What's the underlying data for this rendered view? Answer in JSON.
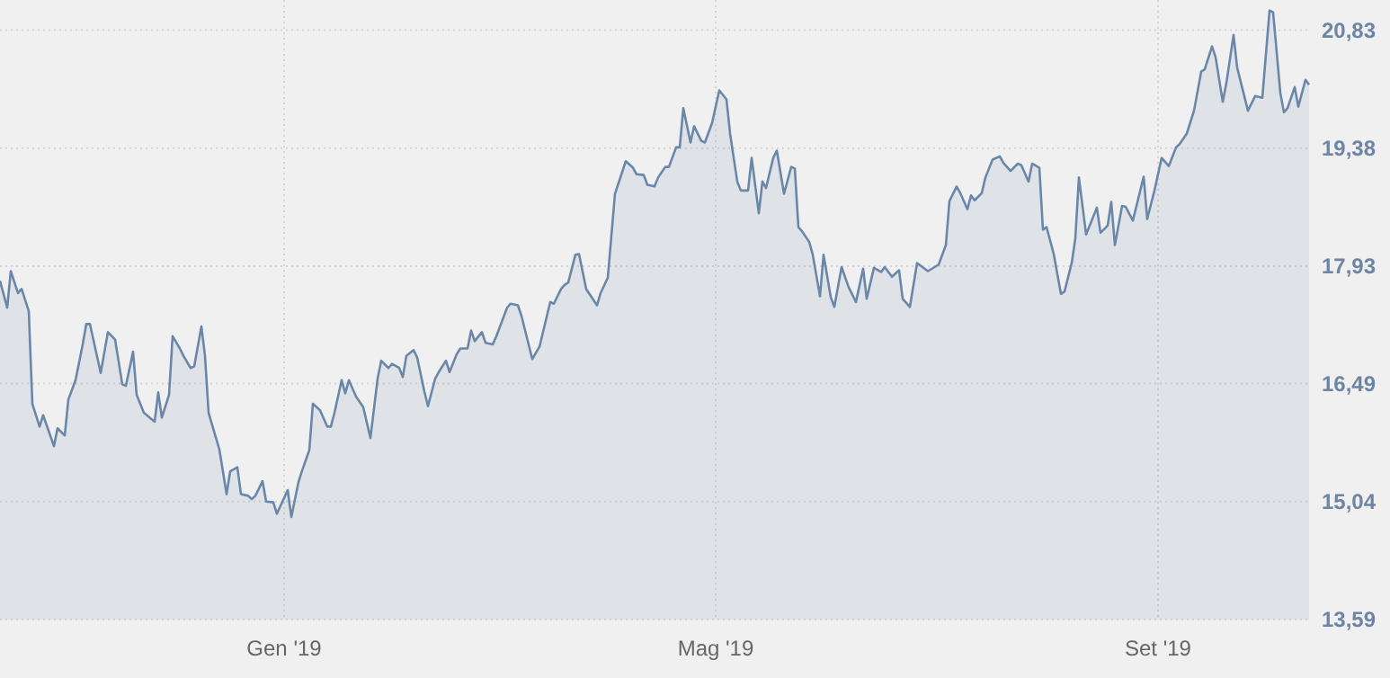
{
  "chart_data": {
    "type": "area",
    "x": [
      "2018-10-14",
      "2018-10-16",
      "2018-10-17",
      "2018-10-19",
      "2018-10-20",
      "2018-10-22",
      "2018-10-23",
      "2018-10-25",
      "2018-10-26",
      "2018-10-29",
      "2018-10-30",
      "2018-11-01",
      "2018-11-02",
      "2018-11-04",
      "2018-11-06",
      "2018-11-07",
      "2018-11-08",
      "2018-11-11",
      "2018-11-13",
      "2018-11-15",
      "2018-11-17",
      "2018-11-18",
      "2018-11-20",
      "2018-11-21",
      "2018-11-23",
      "2018-11-26",
      "2018-11-27",
      "2018-11-28",
      "2018-11-30",
      "2018-12-01",
      "2018-12-03",
      "2018-12-04",
      "2018-12-06",
      "2018-12-07",
      "2018-12-09",
      "2018-12-10",
      "2018-12-11",
      "2018-12-14",
      "2018-12-16",
      "2018-12-17",
      "2018-12-19",
      "2018-12-20",
      "2018-12-22",
      "2018-12-23",
      "2018-12-24",
      "2018-12-26",
      "2018-12-27",
      "2018-12-29",
      "2018-12-30",
      "2019-01-02",
      "2019-01-03",
      "2019-01-05",
      "2019-01-06",
      "2019-01-08",
      "2019-01-09",
      "2019-01-11",
      "2019-01-13",
      "2019-01-14",
      "2019-01-15",
      "2019-01-17",
      "2019-01-18",
      "2019-01-19",
      "2019-01-21",
      "2019-01-23",
      "2019-01-25",
      "2019-01-27",
      "2019-01-28",
      "2019-01-30",
      "2019-01-31",
      "2019-02-02",
      "2019-02-03",
      "2019-02-04",
      "2019-02-06",
      "2019-02-07",
      "2019-02-09",
      "2019-02-10",
      "2019-02-12",
      "2019-02-13",
      "2019-02-15",
      "2019-02-16",
      "2019-02-18",
      "2019-02-19",
      "2019-02-21",
      "2019-02-22",
      "2019-02-23",
      "2019-02-25",
      "2019-02-26",
      "2019-02-28",
      "2019-03-01",
      "2019-03-04",
      "2019-03-05",
      "2019-03-07",
      "2019-03-08",
      "2019-03-11",
      "2019-03-13",
      "2019-03-16",
      "2019-03-17",
      "2019-03-19",
      "2019-03-20",
      "2019-03-21",
      "2019-03-23",
      "2019-03-24",
      "2019-03-26",
      "2019-03-29",
      "2019-03-30",
      "2019-04-01",
      "2019-04-03",
      "2019-04-06",
      "2019-04-08",
      "2019-04-09",
      "2019-04-11",
      "2019-04-12",
      "2019-04-14",
      "2019-04-15",
      "2019-04-17",
      "2019-04-18",
      "2019-04-20",
      "2019-04-21",
      "2019-04-22",
      "2019-04-24",
      "2019-04-25",
      "2019-04-27",
      "2019-04-28",
      "2019-04-30",
      "2019-05-02",
      "2019-05-04",
      "2019-05-05",
      "2019-05-07",
      "2019-05-08",
      "2019-05-10",
      "2019-05-11",
      "2019-05-13",
      "2019-05-14",
      "2019-05-15",
      "2019-05-17",
      "2019-05-18",
      "2019-05-20",
      "2019-05-22",
      "2019-05-23",
      "2019-05-24",
      "2019-05-25",
      "2019-05-27",
      "2019-05-28",
      "2019-05-30",
      "2019-05-31",
      "2019-06-02",
      "2019-06-03",
      "2019-06-05",
      "2019-06-07",
      "2019-06-09",
      "2019-06-11",
      "2019-06-12",
      "2019-06-14",
      "2019-06-16",
      "2019-06-17",
      "2019-06-19",
      "2019-06-21",
      "2019-06-22",
      "2019-06-24",
      "2019-06-26",
      "2019-06-29",
      "2019-07-02",
      "2019-07-04",
      "2019-07-05",
      "2019-07-07",
      "2019-07-08",
      "2019-07-10",
      "2019-07-11",
      "2019-07-12",
      "2019-07-14",
      "2019-07-15",
      "2019-07-17",
      "2019-07-19",
      "2019-07-20",
      "2019-07-22",
      "2019-07-24",
      "2019-07-25",
      "2019-07-27",
      "2019-07-28",
      "2019-07-30",
      "2019-07-31",
      "2019-08-01",
      "2019-08-03",
      "2019-08-05",
      "2019-08-06",
      "2019-08-08",
      "2019-08-09",
      "2019-08-10",
      "2019-08-12",
      "2019-08-15",
      "2019-08-16",
      "2019-08-18",
      "2019-08-19",
      "2019-08-20",
      "2019-08-22",
      "2019-08-23",
      "2019-08-25",
      "2019-08-28",
      "2019-08-29",
      "2019-08-31",
      "2019-09-02",
      "2019-09-04",
      "2019-09-06",
      "2019-09-07",
      "2019-09-09",
      "2019-09-11",
      "2019-09-13",
      "2019-09-14",
      "2019-09-16",
      "2019-09-17",
      "2019-09-19",
      "2019-09-20",
      "2019-09-22",
      "2019-09-23",
      "2019-09-26",
      "2019-09-28",
      "2019-09-30",
      "2019-10-02",
      "2019-10-03",
      "2019-10-05",
      "2019-10-06",
      "2019-10-07",
      "2019-10-09",
      "2019-10-10",
      "2019-10-12",
      "2019-10-13"
    ],
    "series": [
      {
        "color": "#6a87aa",
        "values": [
          17.75,
          17.42,
          17.87,
          17.6,
          17.65,
          17.38,
          16.24,
          15.96,
          16.1,
          15.72,
          15.94,
          15.85,
          16.29,
          16.53,
          16.97,
          17.22,
          17.22,
          16.62,
          17.12,
          17.03,
          16.48,
          16.46,
          16.88,
          16.35,
          16.13,
          16.02,
          16.38,
          16.07,
          16.35,
          17.07,
          16.92,
          16.83,
          16.68,
          16.7,
          17.19,
          16.83,
          16.13,
          15.68,
          15.13,
          15.41,
          15.46,
          15.13,
          15.11,
          15.07,
          15.11,
          15.29,
          15.04,
          15.03,
          14.89,
          15.18,
          14.85,
          15.28,
          15.42,
          15.67,
          16.24,
          16.16,
          15.96,
          15.96,
          16.13,
          16.53,
          16.37,
          16.53,
          16.33,
          16.2,
          15.82,
          16.55,
          16.77,
          16.68,
          16.73,
          16.68,
          16.57,
          16.83,
          16.9,
          16.81,
          16.39,
          16.21,
          16.55,
          16.63,
          16.77,
          16.63,
          16.85,
          16.92,
          16.92,
          17.14,
          17.01,
          17.12,
          16.99,
          16.97,
          17.07,
          17.42,
          17.47,
          17.45,
          17.32,
          16.79,
          16.94,
          17.49,
          17.47,
          17.65,
          17.7,
          17.73,
          18.07,
          18.08,
          17.65,
          17.45,
          17.6,
          17.79,
          18.82,
          19.22,
          19.14,
          19.06,
          19.05,
          18.93,
          18.91,
          19.02,
          19.15,
          19.15,
          19.39,
          19.39,
          19.87,
          19.45,
          19.65,
          19.47,
          19.45,
          19.69,
          20.09,
          19.98,
          19.56,
          18.97,
          18.86,
          18.86,
          19.26,
          18.58,
          18.97,
          18.89,
          19.26,
          19.35,
          18.82,
          19.15,
          19.13,
          18.41,
          18.36,
          18.23,
          18.07,
          17.56,
          18.07,
          17.55,
          17.43,
          17.92,
          17.67,
          17.49,
          17.9,
          17.53,
          17.91,
          17.86,
          17.92,
          17.8,
          17.88,
          17.53,
          17.43,
          17.97,
          17.87,
          17.95,
          18.19,
          18.73,
          18.91,
          18.83,
          18.63,
          18.8,
          18.74,
          18.83,
          19.02,
          19.24,
          19.28,
          19.2,
          19.1,
          19.19,
          19.17,
          18.97,
          19.19,
          19.14,
          18.38,
          18.41,
          18.08,
          17.59,
          17.62,
          17.97,
          18.27,
          19.02,
          18.32,
          18.65,
          18.34,
          18.43,
          18.72,
          18.19,
          18.67,
          18.66,
          18.49,
          19.03,
          18.51,
          18.86,
          19.26,
          19.16,
          19.39,
          19.43,
          19.56,
          19.84,
          20.32,
          20.35,
          20.63,
          20.5,
          19.95,
          20.18,
          20.77,
          20.37,
          19.84,
          20.02,
          20.0,
          21.07,
          21.05,
          20.06,
          19.82,
          19.87,
          20.13,
          19.89,
          20.22,
          20.16
        ]
      }
    ],
    "xlim": [
      "2018-10-14",
      "2019-10-13"
    ],
    "xticks": [
      {
        "value": "2019-01-01",
        "label": "Gen '19"
      },
      {
        "value": "2019-05-01",
        "label": "Mag '19"
      },
      {
        "value": "2019-09-01",
        "label": "Set '19"
      }
    ],
    "ylim": [
      13.59,
      21.2
    ],
    "yticks": [
      {
        "value": 13.59,
        "label": "13,59"
      },
      {
        "value": 15.04,
        "label": "15,04"
      },
      {
        "value": 16.49,
        "label": "16,49"
      },
      {
        "value": 17.93,
        "label": "17,93"
      },
      {
        "value": 19.38,
        "label": "19,38"
      },
      {
        "value": 20.83,
        "label": "20,83"
      }
    ],
    "grid": true
  }
}
